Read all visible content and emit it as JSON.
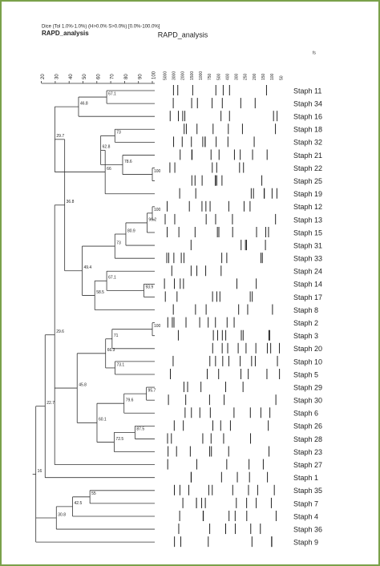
{
  "header": {
    "method": "Dice (Tol 1.0%-1.0%) (H>0.0% S>0.0%) [0.0%-100.0%]",
    "experiment": "RAPD_analysis",
    "title": "RAPD_analysis",
    "mark": "fs"
  },
  "similarity_axis": {
    "ticks": [
      20,
      30,
      40,
      50,
      60,
      70,
      80,
      90,
      100
    ]
  },
  "size_markers": [
    "5000",
    "3000",
    "2000",
    "1500",
    "1000",
    "750",
    "500",
    "400",
    "300",
    "250",
    "200",
    "150",
    "100",
    "50"
  ],
  "strains": [
    "Staph 11",
    "Staph 34",
    "Staph 16",
    "Staph 18",
    "Staph 32",
    "Staph 21",
    "Staph 22",
    "Staph 25",
    "Staph 19",
    "Staph 12",
    "Staph 13",
    "Staph 15",
    "Staph 31",
    "Staph 33",
    "Staph 24",
    "Staph 14",
    "Staph 17",
    "Staph 8",
    "Staph 2",
    "Staph 3",
    "Staph 20",
    "Staph 10",
    "Staph 5",
    "Staph 29",
    "Staph 30",
    "Staph 6",
    "Staph 26",
    "Staph 28",
    "Staph 23",
    "Staph 27",
    "Staph 1",
    "Staph 35",
    "Staph 7",
    "Staph 4",
    "Staph 36",
    "Staph 9"
  ],
  "node_labels": [
    "67.1",
    "46.8",
    "73",
    "100",
    "78.6",
    "62.8",
    "66",
    "29.7",
    "100",
    "96.2",
    "80.9",
    "73",
    "93.9",
    "67.1",
    "58.5",
    "49.4",
    "36.8",
    "100",
    "71",
    "73.1",
    "66.3",
    "95.7",
    "79.6",
    "87.5",
    "72.5",
    "60.1",
    "45.8",
    "29.6",
    "22.7",
    "55",
    "42.5",
    "30.8",
    "16"
  ]
}
